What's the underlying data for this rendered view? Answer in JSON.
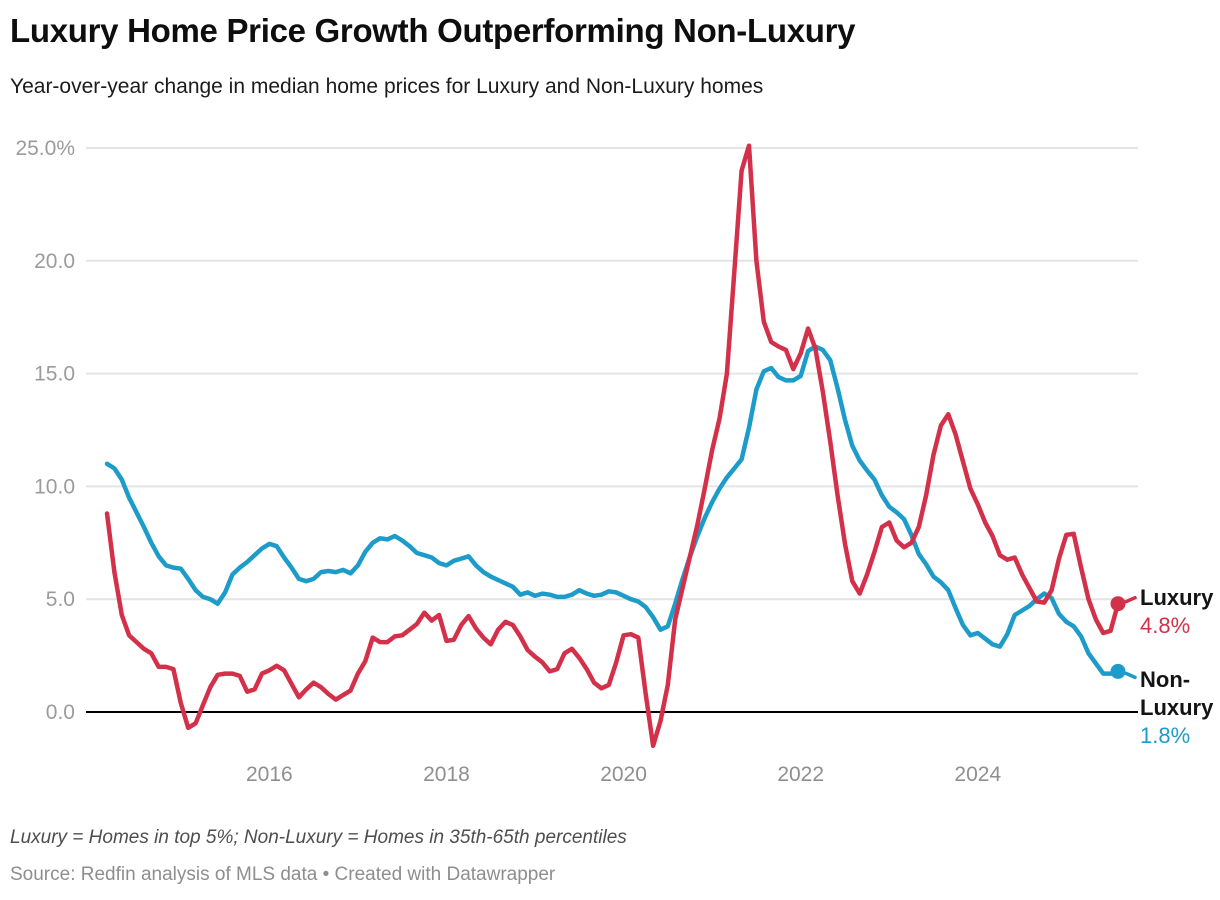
{
  "header": {
    "title": "Luxury Home Price Growth Outperforming Non-Luxury",
    "subtitle": "Year-over-year change in median home prices for Luxury and Non-Luxury homes"
  },
  "footer": {
    "note": "Luxury = Homes in top 5%; Non-Luxury = Homes in 35th-65th percentiles",
    "source": "Source: Redfin analysis of MLS data • Created with Datawrapper"
  },
  "colors": {
    "luxury": "#d3304a",
    "non_luxury": "#1d9bc9",
    "grid": "#e4e4e4",
    "zero_line": "#000000",
    "y_axis_label": "#9b9b9b",
    "x_axis_label": "#8f8f8f"
  },
  "chart_data": {
    "type": "line",
    "title": "Luxury Home Price Growth Outperforming Non-Luxury",
    "subtitle": "Year-over-year change in median home prices for Luxury and Non-Luxury homes",
    "unit": "percent",
    "freq": "monthly",
    "x_start": "2014-03",
    "x_end": "2025-08",
    "grid": "horizontal",
    "ylim": [
      -1.7,
      25.5
    ],
    "legend_position": "right-end-labels",
    "x_axis": {
      "tick_labels": [
        "2016",
        "2018",
        "2020",
        "2022",
        "2024"
      ],
      "tick_indices": [
        22,
        46,
        70,
        94,
        118
      ]
    },
    "y_axis": {
      "ticks": [
        {
          "label": "25.0%",
          "value": 25
        },
        {
          "label": "20.0",
          "value": 20
        },
        {
          "label": "15.0",
          "value": 15
        },
        {
          "label": "10.0",
          "value": 10
        },
        {
          "label": "5.0",
          "value": 5
        },
        {
          "label": "0.0",
          "value": 0
        }
      ]
    },
    "series": [
      {
        "name": "Non-Luxury",
        "color": "#1d9bc9",
        "end_label": "Non-Luxury",
        "end_value_label": "1.8%",
        "last_value": 1.8,
        "values": [
          11.0,
          10.8,
          10.3,
          9.5,
          8.85,
          8.2,
          7.5,
          6.9,
          6.5,
          6.4,
          6.35,
          5.9,
          5.4,
          5.1,
          5.0,
          4.8,
          5.3,
          6.1,
          6.4,
          6.65,
          6.95,
          7.25,
          7.45,
          7.35,
          6.85,
          6.4,
          5.9,
          5.8,
          5.9,
          6.2,
          6.25,
          6.2,
          6.3,
          6.15,
          6.5,
          7.1,
          7.5,
          7.7,
          7.65,
          7.8,
          7.6,
          7.35,
          7.05,
          6.95,
          6.85,
          6.6,
          6.5,
          6.7,
          6.8,
          6.9,
          6.5,
          6.2,
          6.0,
          5.85,
          5.7,
          5.55,
          5.2,
          5.3,
          5.15,
          5.25,
          5.2,
          5.1,
          5.1,
          5.2,
          5.4,
          5.25,
          5.15,
          5.2,
          5.35,
          5.3,
          5.15,
          5.0,
          4.9,
          4.65,
          4.2,
          3.65,
          3.8,
          4.8,
          5.9,
          6.9,
          7.8,
          8.6,
          9.3,
          9.9,
          10.4,
          10.8,
          11.2,
          12.6,
          14.3,
          15.1,
          15.25,
          14.85,
          14.7,
          14.7,
          14.9,
          16.0,
          16.2,
          16.05,
          15.6,
          14.35,
          12.95,
          11.8,
          11.15,
          10.7,
          10.3,
          9.6,
          9.1,
          8.85,
          8.55,
          7.85,
          7.0,
          6.55,
          6.0,
          5.75,
          5.4,
          4.6,
          3.85,
          3.4,
          3.5,
          3.25,
          3.0,
          2.9,
          3.45,
          4.3,
          4.5,
          4.7,
          5.0,
          5.25,
          5.05,
          4.35,
          4.0,
          3.8,
          3.35,
          2.6,
          2.15,
          1.7,
          1.7,
          1.8
        ]
      },
      {
        "name": "Luxury",
        "color": "#d3304a",
        "end_label": "Luxury",
        "end_value_label": "4.8%",
        "last_value": 4.8,
        "values": [
          8.8,
          6.2,
          4.3,
          3.4,
          3.1,
          2.8,
          2.6,
          2.0,
          2.0,
          1.9,
          0.4,
          -0.7,
          -0.5,
          0.3,
          1.1,
          1.65,
          1.7,
          1.7,
          1.6,
          0.9,
          1.0,
          1.7,
          1.85,
          2.05,
          1.85,
          1.25,
          0.65,
          1.0,
          1.3,
          1.1,
          0.8,
          0.55,
          0.75,
          0.95,
          1.7,
          2.25,
          3.3,
          3.1,
          3.1,
          3.35,
          3.4,
          3.65,
          3.9,
          4.4,
          4.05,
          4.3,
          3.15,
          3.2,
          3.85,
          4.25,
          3.7,
          3.3,
          3.0,
          3.65,
          4.0,
          3.85,
          3.35,
          2.75,
          2.45,
          2.2,
          1.8,
          1.9,
          2.6,
          2.8,
          2.4,
          1.9,
          1.3,
          1.05,
          1.2,
          2.2,
          3.4,
          3.45,
          3.3,
          0.8,
          -1.5,
          -0.4,
          1.2,
          4.1,
          5.5,
          6.9,
          8.3,
          9.9,
          11.6,
          13.0,
          15.0,
          19.5,
          24.0,
          25.1,
          20.0,
          17.3,
          16.4,
          16.2,
          16.05,
          15.2,
          15.9,
          17.0,
          16.1,
          14.2,
          12.0,
          9.6,
          7.45,
          5.8,
          5.25,
          6.1,
          7.1,
          8.2,
          8.4,
          7.6,
          7.3,
          7.5,
          8.2,
          9.6,
          11.4,
          12.7,
          13.2,
          12.3,
          11.1,
          9.9,
          9.2,
          8.4,
          7.8,
          6.95,
          6.75,
          6.85,
          6.1,
          5.5,
          4.9,
          4.85,
          5.4,
          6.8,
          7.85,
          7.9,
          6.4,
          5.0,
          4.1,
          3.5,
          3.6,
          4.8
        ]
      }
    ]
  }
}
